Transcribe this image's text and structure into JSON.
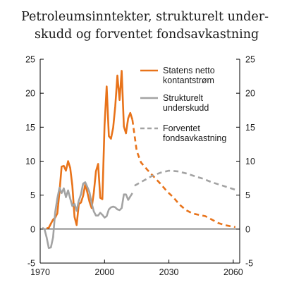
{
  "chart_data": {
    "type": "line",
    "title_lines": [
      "Petroleumsinntekter, strukturelt under-",
      "skudd og forventet fondsavkastning"
    ],
    "xlabel": "",
    "ylabel": "",
    "xlim": [
      1970,
      2063
    ],
    "ylim": [
      -5,
      25
    ],
    "x_ticks": [
      1970,
      2000,
      2030,
      2060
    ],
    "y_ticks": [
      -5,
      0,
      5,
      10,
      15,
      20,
      25
    ],
    "y_tick_labels_left": [
      "-5",
      "0",
      "5",
      "10",
      "15",
      "20",
      "25"
    ],
    "y_tick_labels_right": [
      "-5",
      "0",
      "5",
      "10",
      "15",
      "20",
      "25"
    ],
    "x_tick_labels": [
      "1970",
      "2000",
      "2030",
      "2060"
    ],
    "grid": false,
    "legend_position": "top-right",
    "series": [
      {
        "name_lines": [
          "Statens netto",
          "kontantstrøm"
        ],
        "color": "#e8731a",
        "style": "solid",
        "points": [
          [
            1973,
            0.1
          ],
          [
            1974,
            0.2
          ],
          [
            1975,
            0.8
          ],
          [
            1976,
            1.4
          ],
          [
            1977,
            1.7
          ],
          [
            1978,
            2.3
          ],
          [
            1979,
            5.5
          ],
          [
            1980,
            9.2
          ],
          [
            1981,
            9.3
          ],
          [
            1982,
            8.6
          ],
          [
            1983,
            10.0
          ],
          [
            1984,
            9.0
          ],
          [
            1985,
            6.4
          ],
          [
            1986,
            1.8
          ],
          [
            1987,
            0.6
          ],
          [
            1988,
            3.7
          ],
          [
            1989,
            3.9
          ],
          [
            1990,
            4.9
          ],
          [
            1991,
            6.6
          ],
          [
            1992,
            5.4
          ],
          [
            1993,
            4.0
          ],
          [
            1994,
            3.1
          ],
          [
            1995,
            5.4
          ],
          [
            1996,
            8.5
          ],
          [
            1997,
            9.6
          ],
          [
            1998,
            4.6
          ],
          [
            1999,
            4.4
          ],
          [
            2000,
            15.3
          ],
          [
            2001,
            21.0
          ],
          [
            2002,
            13.7
          ],
          [
            2003,
            13.3
          ],
          [
            2004,
            14.9
          ],
          [
            2005,
            18.1
          ],
          [
            2006,
            22.6
          ],
          [
            2007,
            19.0
          ],
          [
            2008,
            23.3
          ],
          [
            2009,
            15.1
          ],
          [
            2010,
            14.1
          ],
          [
            2011,
            16.3
          ],
          [
            2012,
            17.1
          ],
          [
            2013,
            16.1
          ]
        ]
      },
      {
        "name_lines": [
          "Statens netto",
          "kontantstrøm"
        ],
        "color": "#e8731a",
        "style": "dashed",
        "legend": false,
        "points": [
          [
            2013,
            16.1
          ],
          [
            2015,
            11.5
          ],
          [
            2017,
            9.8
          ],
          [
            2020,
            8.7
          ],
          [
            2023,
            7.7
          ],
          [
            2026,
            6.7
          ],
          [
            2029,
            5.6
          ],
          [
            2032,
            4.7
          ],
          [
            2035,
            3.6
          ],
          [
            2038,
            2.8
          ],
          [
            2041,
            2.3
          ],
          [
            2044,
            2.1
          ],
          [
            2047,
            1.9
          ],
          [
            2050,
            1.4
          ],
          [
            2053,
            0.9
          ],
          [
            2056,
            0.6
          ],
          [
            2059,
            0.4
          ],
          [
            2061,
            0.3
          ]
        ]
      },
      {
        "name_lines": [
          "Strukturelt",
          "underskudd"
        ],
        "color": "#a3a3a3",
        "style": "solid",
        "points": [
          [
            1971,
            0.2
          ],
          [
            1972,
            0.0
          ],
          [
            1973,
            -1.2
          ],
          [
            1974,
            -2.8
          ],
          [
            1975,
            -2.7
          ],
          [
            1976,
            -1.2
          ],
          [
            1977,
            2.5
          ],
          [
            1978,
            4.5
          ],
          [
            1979,
            6.1
          ],
          [
            1980,
            5.3
          ],
          [
            1981,
            6.0
          ],
          [
            1982,
            4.7
          ],
          [
            1983,
            5.7
          ],
          [
            1984,
            4.5
          ],
          [
            1985,
            3.4
          ],
          [
            1986,
            3.7
          ],
          [
            1987,
            2.7
          ],
          [
            1988,
            4.2
          ],
          [
            1989,
            5.1
          ],
          [
            1990,
            6.7
          ],
          [
            1991,
            6.9
          ],
          [
            1992,
            6.2
          ],
          [
            1993,
            5.4
          ],
          [
            1994,
            3.8
          ],
          [
            1995,
            2.6
          ],
          [
            1996,
            2.0
          ],
          [
            1997,
            2.0
          ],
          [
            1998,
            2.4
          ],
          [
            1999,
            2.1
          ],
          [
            2000,
            1.7
          ],
          [
            2001,
            1.9
          ],
          [
            2002,
            2.9
          ],
          [
            2003,
            3.2
          ],
          [
            2004,
            3.3
          ],
          [
            2005,
            3.2
          ],
          [
            2006,
            2.9
          ],
          [
            2007,
            2.8
          ],
          [
            2008,
            3.1
          ],
          [
            2009,
            5.1
          ],
          [
            2010,
            5.1
          ],
          [
            2011,
            4.3
          ],
          [
            2012,
            4.8
          ],
          [
            2013,
            5.3
          ]
        ]
      },
      {
        "name_lines": [
          "Forventet",
          "fondsavkastning"
        ],
        "color": "#a3a3a3",
        "style": "dashed",
        "points": [
          [
            2014,
            6.4
          ],
          [
            2018,
            7.1
          ],
          [
            2022,
            7.8
          ],
          [
            2026,
            8.3
          ],
          [
            2030,
            8.6
          ],
          [
            2034,
            8.5
          ],
          [
            2038,
            8.2
          ],
          [
            2042,
            7.8
          ],
          [
            2046,
            7.4
          ],
          [
            2050,
            6.9
          ],
          [
            2054,
            6.5
          ],
          [
            2058,
            6.1
          ],
          [
            2061,
            5.8
          ]
        ]
      }
    ]
  }
}
